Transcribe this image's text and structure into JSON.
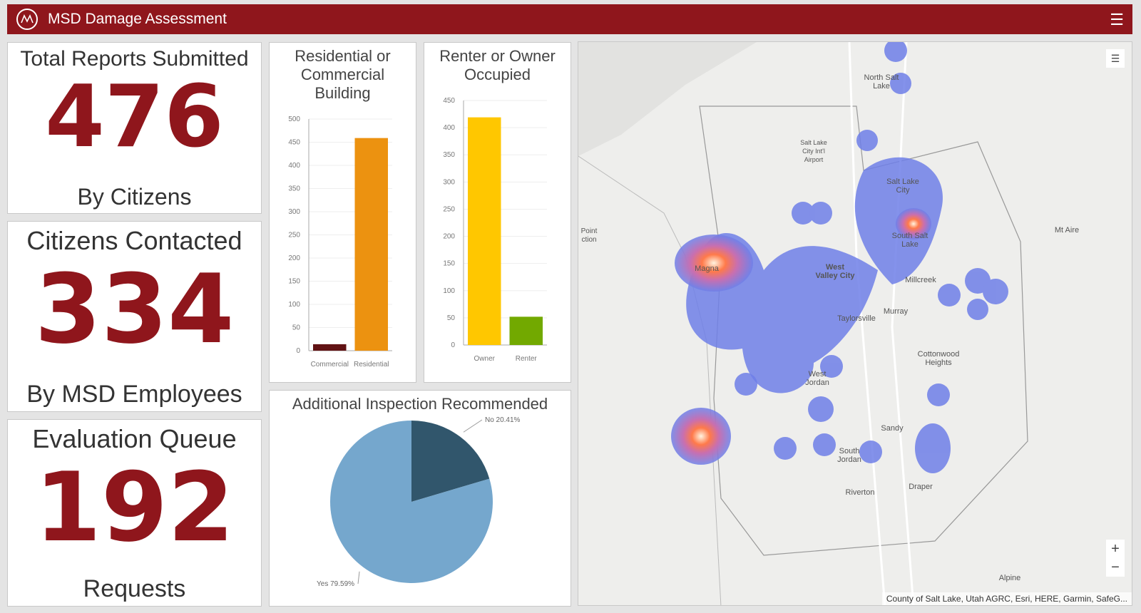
{
  "header": {
    "title": "MSD Damage Assessment",
    "menu_icon": "hamburger-icon"
  },
  "stats": [
    {
      "title": "Total Reports Submitted",
      "value": "476",
      "subtitle": "By Citizens"
    },
    {
      "title": "Citizens Contacted",
      "value": "334",
      "subtitle": "By MSD Employees"
    },
    {
      "title": "Evaluation Queue",
      "value": "192",
      "subtitle": "Requests"
    }
  ],
  "chart_data": [
    {
      "type": "bar",
      "title": "Residential or Commercial Building",
      "categories": [
        "Commercial",
        "Residential"
      ],
      "values": [
        14,
        459
      ],
      "colors": [
        "#611314",
        "#ec9210"
      ],
      "ylim": [
        0,
        500
      ],
      "ticks": [
        "0",
        "50",
        "100",
        "150",
        "200",
        "250",
        "300",
        "350",
        "400",
        "450",
        "500"
      ]
    },
    {
      "type": "bar",
      "title": "Renter or Owner Occupied",
      "categories": [
        "Owner",
        "Renter"
      ],
      "values": [
        419,
        52
      ],
      "colors": [
        "#ffc700",
        "#72a900"
      ],
      "ylim": [
        0,
        450
      ],
      "ticks": [
        "0",
        "50",
        "100",
        "150",
        "200",
        "250",
        "300",
        "350",
        "400",
        "450"
      ]
    },
    {
      "type": "pie",
      "title": "Additional Inspection Recommended",
      "slices": [
        {
          "label": "No 20.41%",
          "value": 20.41,
          "color": "#31566c"
        },
        {
          "label": "Yes 79.59%",
          "value": 79.59,
          "color": "#75a7cd"
        }
      ]
    }
  ],
  "map": {
    "places": [
      "North Salt Lake",
      "Salt Lake City Int'l Airport",
      "Salt Lake City",
      "South Salt Lake",
      "Magna",
      "West Valley City",
      "Millcreek",
      "Taylorsville",
      "Murray",
      "Cottonwood Heights",
      "West Jordan",
      "Sandy",
      "South Jordan",
      "Draper",
      "Riverton",
      "Mt Aire",
      "Point ction",
      "Alpine"
    ],
    "zoom_in": "+",
    "zoom_out": "−",
    "attribution": "County of Salt Lake, Utah AGRC, Esri, HERE, Garmin, SafeG..."
  }
}
